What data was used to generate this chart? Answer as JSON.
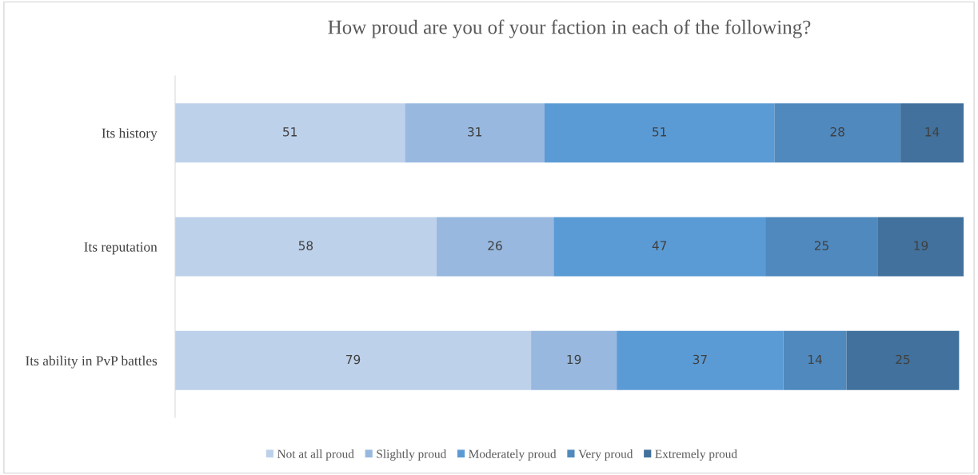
{
  "chart_data": {
    "type": "bar",
    "orientation": "horizontal",
    "stacked": true,
    "data_labels": true,
    "title": "How proud are you of your faction in each of the following?",
    "categories": [
      "Its history",
      "Its reputation",
      "Its ability in PvP battles"
    ],
    "series": [
      {
        "name": "Not at all proud",
        "color": "#bdd1ea",
        "values": [
          51,
          58,
          79
        ]
      },
      {
        "name": "Slightly proud",
        "color": "#98b8df",
        "values": [
          31,
          26,
          19
        ]
      },
      {
        "name": "Moderately proud",
        "color": "#5b9bd5",
        "values": [
          51,
          47,
          37
        ]
      },
      {
        "name": "Very proud",
        "color": "#4f89be",
        "values": [
          28,
          25,
          14
        ]
      },
      {
        "name": "Extremely proud",
        "color": "#41719c",
        "values": [
          14,
          19,
          25
        ]
      }
    ],
    "legend": "bottom",
    "grid": false
  }
}
